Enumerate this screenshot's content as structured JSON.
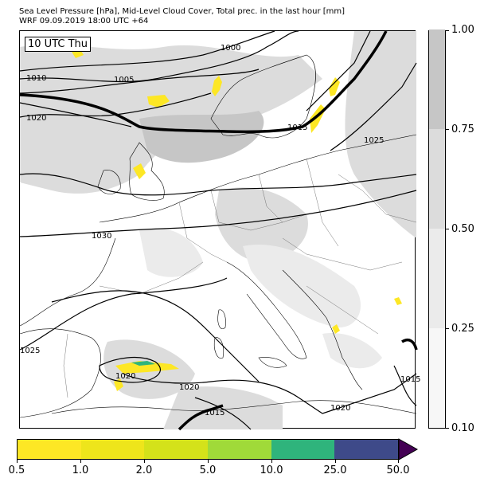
{
  "title": {
    "line1": "Sea Level Pressure [hPa], Mid-Level Cloud Cover, Total prec. in the last hour [mm]",
    "line2": "WRF 09.09.2019 18:00 UTC +64"
  },
  "time_label": "10 UTC Thu",
  "isobar_labels": [
    "1000",
    "1005",
    "1010",
    "1020",
    "1015",
    "1025",
    "1030",
    "1025",
    "1020",
    "1020",
    "1015",
    "1020",
    "1015"
  ],
  "cloud_cover_colorbar": {
    "ticks": [
      "0.10",
      "0.25",
      "0.50",
      "0.75",
      "1.00"
    ],
    "levels": [
      {
        "from": 0.1,
        "to": 0.25,
        "color": "#f7f7f7"
      },
      {
        "from": 0.25,
        "to": 0.5,
        "color": "#ebebeb"
      },
      {
        "from": 0.5,
        "to": 0.75,
        "color": "#dcdcdc"
      },
      {
        "from": 0.75,
        "to": 1.0,
        "color": "#c6c6c6"
      }
    ]
  },
  "precip_colorbar": {
    "ticks": [
      "0.5",
      "1.0",
      "2.0",
      "5.0",
      "10.0",
      "25.0",
      "50.0"
    ],
    "colors": [
      "#fde725",
      "#eee51b",
      "#d4e21a",
      "#a0da39",
      "#2fb47c",
      "#3e4a89"
    ],
    "extend_color": "#440154"
  },
  "colors": {
    "isobar": "#000000",
    "coastline": "#000000",
    "border": "#555555",
    "precip_light": "#fde725",
    "precip_heavy": "#2fb47c"
  }
}
